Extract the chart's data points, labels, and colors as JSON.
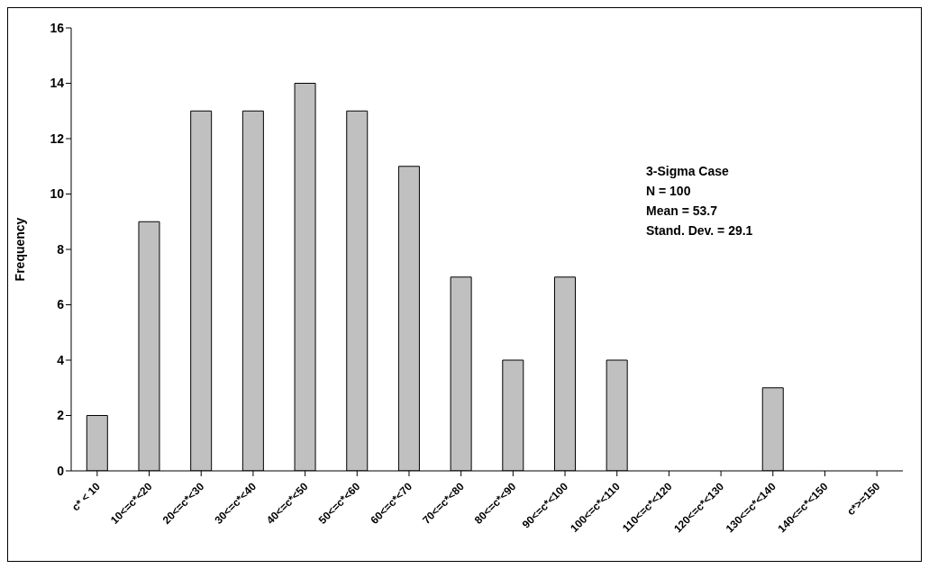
{
  "chart_data": {
    "type": "bar",
    "ylabel": "Frequency",
    "categories": [
      "c* < 10",
      "10<=c*<20",
      "20<=c*<30",
      "30<=c*<40",
      "40<=c*<50",
      "50<=c*<60",
      "60<=c*<70",
      "70<=c*<80",
      "80<=c*<90",
      "90<=c*<100",
      "100<=c*<110",
      "110<=c*<120",
      "120<=c*<130",
      "130<=c*<140",
      "140<=c*<150",
      "c*>=150"
    ],
    "values": [
      2,
      9,
      13,
      13,
      14,
      13,
      11,
      7,
      4,
      7,
      4,
      0,
      0,
      3,
      0,
      0
    ],
    "color": "#c0c0c0",
    "ylim": [
      0,
      16
    ],
    "yticks": [
      0,
      2,
      4,
      6,
      8,
      10,
      12,
      14,
      16
    ],
    "grid": false,
    "legend": false,
    "annotations": [
      "3-Sigma Case",
      "N = 100",
      "Mean = 53.7",
      "Stand. Dev. = 29.1"
    ]
  }
}
